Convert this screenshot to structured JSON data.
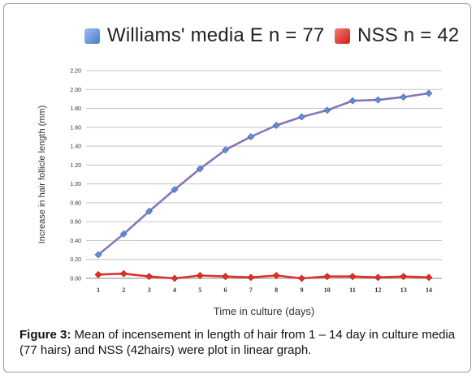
{
  "chart_data": {
    "type": "line",
    "xlabel": "Time in culture (days)",
    "ylabel": "Increase in hair follicle length (mm)",
    "x": [
      1,
      2,
      3,
      4,
      5,
      6,
      7,
      8,
      9,
      10,
      11,
      12,
      13,
      14
    ],
    "x_tick_labels": [
      "1",
      "2",
      "3",
      "4",
      "5",
      "6",
      "7",
      "8",
      "9",
      "10",
      "11",
      "12",
      "13",
      "14"
    ],
    "y_tick_labels": [
      "0.00",
      "0.20",
      "0.40",
      "0.60",
      "0.80",
      "1.00",
      "1.20",
      "1.40",
      "1.60",
      "1.80",
      "2.00",
      "2.20"
    ],
    "ylim": [
      0,
      2.2
    ],
    "grid": "horizontal",
    "legend_position": "top",
    "series": [
      {
        "name": "Williams' media E  n = 77",
        "color": "#5b8fd8",
        "line_color": "#8576b6",
        "marker": "diamond",
        "values": [
          0.25,
          0.47,
          0.71,
          0.94,
          1.16,
          1.36,
          1.5,
          1.62,
          1.71,
          1.78,
          1.88,
          1.89,
          1.92,
          1.96
        ]
      },
      {
        "name": "NSS    n = 42",
        "color": "#e0302a",
        "line_color": "#e0302a",
        "marker": "diamond",
        "values": [
          0.04,
          0.05,
          0.02,
          0.0,
          0.03,
          0.02,
          0.01,
          0.03,
          0.0,
          0.02,
          0.02,
          0.01,
          0.02,
          0.01
        ]
      }
    ]
  },
  "caption": {
    "label": "Figure 3:",
    "text": " Mean of incensement in length of hair from 1 – 14 day in culture media (77 hairs) and NSS (42hairs) were plot in linear graph."
  }
}
